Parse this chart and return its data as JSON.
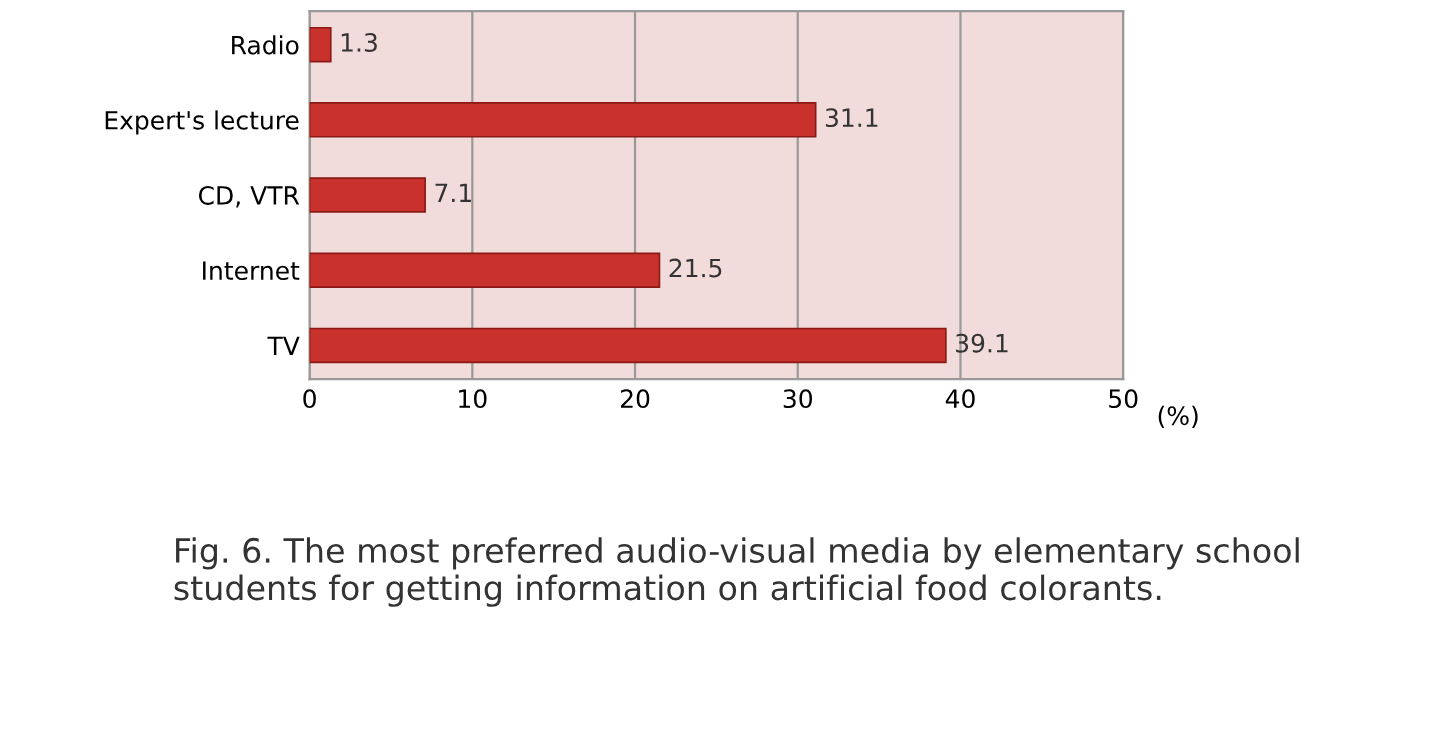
{
  "chart_data": {
    "type": "bar",
    "orientation": "horizontal",
    "categories": [
      "Radio",
      "Expert's lecture",
      "CD, VTR",
      "Internet",
      "TV"
    ],
    "values": [
      1.3,
      31.1,
      7.1,
      21.5,
      39.1
    ],
    "color": "#c8312c",
    "xlim": [
      0,
      50
    ],
    "xticks": [
      0,
      10,
      20,
      30,
      40,
      50
    ],
    "xlabel": "(%)",
    "grid": "x",
    "data_labels": true,
    "annotations": [
      "Fig. 6. The most preferred audio-visual media by elementary school students for getting information on artificial food colorants."
    ]
  }
}
